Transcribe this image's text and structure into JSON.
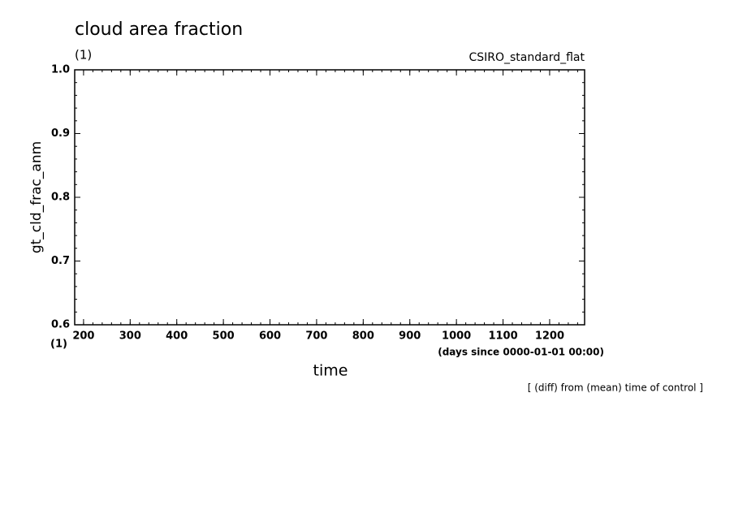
{
  "chart_data": {
    "type": "line",
    "title": "cloud area fraction",
    "subtitle": "CSIRO_standard_flat",
    "y_units": "(1)",
    "x_units_short": "(1)",
    "x_units": "(days since 0000-01-01 00:00)",
    "x_label": "time",
    "y_label": "gt_cld_frac_anm",
    "annotation": "[ (diff) from (mean) time of control ]",
    "xlim": [
      181,
      1275
    ],
    "ylim": [
      0.6,
      1.0
    ],
    "xticks": [
      200,
      300,
      400,
      500,
      600,
      700,
      800,
      900,
      1000,
      1100,
      1200
    ],
    "yticks": [
      0.6,
      0.7,
      0.8,
      0.9,
      {
        "value": 1,
        "label": "1.0"
      }
    ],
    "xminorticks": [
      200,
      220,
      240,
      260,
      280,
      300,
      320,
      340,
      360,
      380,
      400,
      420,
      440,
      460,
      480,
      500,
      520,
      540,
      560,
      580,
      600,
      620,
      640,
      660,
      680,
      700,
      720,
      740,
      760,
      780,
      800,
      820,
      840,
      860,
      880,
      900,
      920,
      940,
      960,
      980,
      1000,
      1020,
      1040,
      1060,
      1080,
      1100,
      1120,
      1140,
      1160,
      1180,
      1200,
      1220,
      1240,
      1260
    ],
    "yminorticks": [
      0.6,
      0.62,
      0.64,
      0.66,
      0.68,
      0.7,
      0.72,
      0.74,
      0.76,
      0.78,
      0.8,
      0.82,
      0.84,
      0.86,
      0.88,
      0.9,
      0.92,
      0.94,
      0.96,
      0.98,
      1.0
    ],
    "color": "#000000"
  }
}
